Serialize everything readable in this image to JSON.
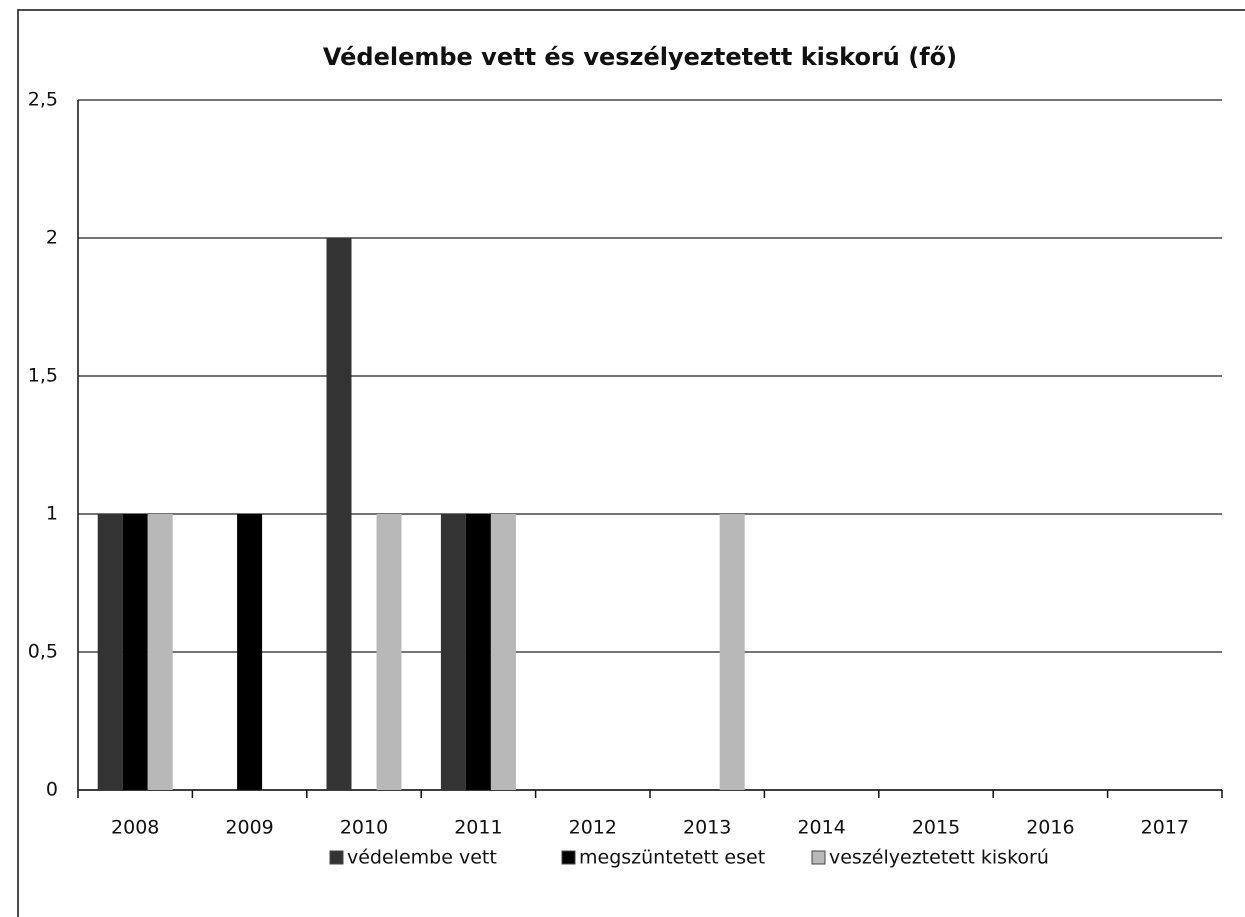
{
  "chart_data": {
    "type": "bar",
    "title": "Védelembe vett és veszélyeztetett kiskorú (fő)",
    "categories": [
      "2008",
      "2009",
      "2010",
      "2011",
      "2012",
      "2013",
      "2014",
      "2015",
      "2016",
      "2017"
    ],
    "series": [
      {
        "name": "védelembe vett",
        "color": "#333333",
        "values": [
          1,
          0,
          2,
          1,
          0,
          0,
          0,
          0,
          0,
          0
        ]
      },
      {
        "name": "megszüntetett eset",
        "color": "#000000",
        "values": [
          1,
          1,
          0,
          1,
          0,
          0,
          0,
          0,
          0,
          0
        ]
      },
      {
        "name": "veszélyeztetett kiskorú",
        "color": "#b8b8b8",
        "values": [
          1,
          0,
          1,
          1,
          0,
          1,
          0,
          0,
          0,
          0
        ]
      }
    ],
    "ylim": [
      0,
      2.5
    ],
    "yticks": [
      0,
      {
        "value": 0.5,
        "label": "0,5"
      },
      1,
      {
        "value": 1.5,
        "label": "1,5"
      },
      2,
      {
        "value": 2.5,
        "label": "2,5"
      }
    ],
    "grid": true,
    "legend": "bottom"
  }
}
